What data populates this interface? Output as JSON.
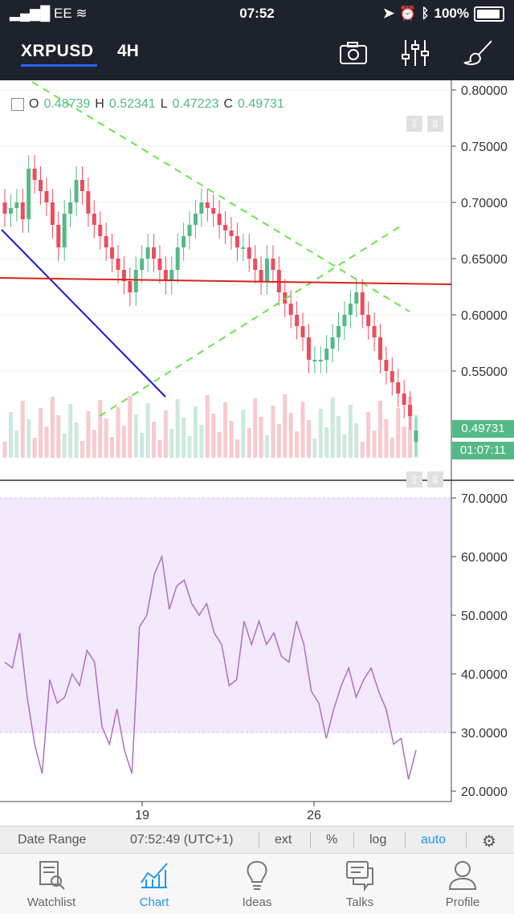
{
  "status": {
    "carrier": "EE",
    "time": "07:52",
    "battery": "100%"
  },
  "toolbar": {
    "symbol": "XRPUSD",
    "interval": "4H",
    "icons": [
      "camera-icon",
      "indicators-icon",
      "drawing-brush-icon"
    ]
  },
  "ohlc": {
    "o_label": "O",
    "o": "0.48739",
    "h_label": "H",
    "h": "0.52341",
    "l_label": "L",
    "l": "0.47223",
    "c_label": "C",
    "c": "0.49731"
  },
  "price_tags": {
    "last": "0.49731",
    "countdown": "01:07:11"
  },
  "colors": {
    "up": "#53b987",
    "down": "#eb4d5c",
    "rsi": "#b06ec3",
    "rsi_band": "#f3e9fc",
    "accent": "#2196f3"
  },
  "chart_data": [
    {
      "type": "candlestick",
      "yticks": [
        "0.80000",
        "0.75000",
        "0.70000",
        "0.65000",
        "0.60000",
        "0.55000"
      ],
      "ylim": [
        0.5,
        0.82
      ],
      "xticks": [
        "19",
        "26"
      ],
      "close": [
        0.69,
        0.695,
        0.7,
        0.685,
        0.73,
        0.72,
        0.71,
        0.7,
        0.68,
        0.66,
        0.69,
        0.7,
        0.72,
        0.71,
        0.69,
        0.68,
        0.67,
        0.66,
        0.65,
        0.64,
        0.63,
        0.62,
        0.64,
        0.65,
        0.66,
        0.65,
        0.64,
        0.63,
        0.64,
        0.66,
        0.67,
        0.68,
        0.69,
        0.7,
        0.695,
        0.69,
        0.68,
        0.675,
        0.67,
        0.66,
        0.66,
        0.65,
        0.64,
        0.63,
        0.65,
        0.64,
        0.62,
        0.61,
        0.6,
        0.59,
        0.58,
        0.56,
        0.56,
        0.56,
        0.57,
        0.58,
        0.59,
        0.6,
        0.61,
        0.62,
        0.6,
        0.59,
        0.58,
        0.56,
        0.55,
        0.54,
        0.53,
        0.52,
        0.51,
        0.497
      ],
      "open": [
        0.7,
        0.69,
        0.695,
        0.7,
        0.685,
        0.73,
        0.72,
        0.71,
        0.7,
        0.68,
        0.66,
        0.69,
        0.7,
        0.72,
        0.71,
        0.69,
        0.68,
        0.67,
        0.66,
        0.65,
        0.64,
        0.63,
        0.62,
        0.64,
        0.65,
        0.66,
        0.65,
        0.64,
        0.63,
        0.64,
        0.66,
        0.67,
        0.68,
        0.69,
        0.7,
        0.695,
        0.69,
        0.68,
        0.675,
        0.67,
        0.66,
        0.66,
        0.65,
        0.64,
        0.63,
        0.65,
        0.64,
        0.62,
        0.61,
        0.6,
        0.59,
        0.58,
        0.56,
        0.56,
        0.56,
        0.57,
        0.58,
        0.59,
        0.6,
        0.61,
        0.62,
        0.6,
        0.59,
        0.58,
        0.56,
        0.55,
        0.54,
        0.53,
        0.52,
        0.487
      ]
    },
    {
      "type": "line",
      "name": "",
      "yticks": [
        "70.0000",
        "60.0000",
        "50.0000",
        "40.0000",
        "30.0000",
        "20.0000"
      ],
      "ylim": [
        18,
        72
      ],
      "band": [
        30,
        70
      ],
      "values": [
        42,
        41,
        47,
        36,
        28,
        23,
        39,
        35,
        36,
        40,
        38,
        44,
        42,
        31,
        28,
        34,
        27,
        23,
        48,
        50,
        57,
        60,
        51,
        55,
        56,
        52,
        50,
        52,
        47,
        45,
        38,
        39,
        49,
        45,
        49,
        45,
        47,
        43,
        42,
        49,
        45,
        37,
        35,
        29,
        34,
        38,
        41,
        36,
        39,
        41,
        37,
        34,
        28,
        29,
        22,
        27
      ]
    }
  ]
}
